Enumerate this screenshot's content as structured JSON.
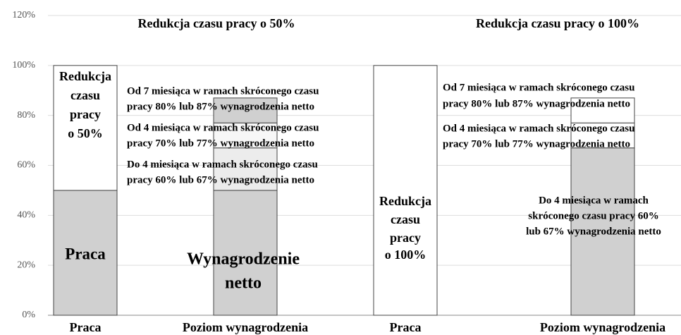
{
  "chart_data": {
    "type": "stacked-bar",
    "categories": [
      "Praca",
      "Poziom wynagrodzenia",
      "Praca",
      "Poziom wynagrodzenia"
    ],
    "bars": [
      {
        "segments": [
          {
            "value": 50,
            "color": "#d0d0d0"
          },
          {
            "value": 50,
            "color": "#ffffff"
          }
        ]
      },
      {
        "segments": [
          {
            "value": 50,
            "color": "#d0d0d0"
          },
          {
            "value": 17,
            "color": "#ececec"
          },
          {
            "value": 10,
            "color": "#f7f7f7"
          },
          {
            "value": 10,
            "color": "#d0d0d0"
          }
        ]
      },
      {
        "segments": [
          {
            "value": 100,
            "color": "#ffffff"
          }
        ]
      },
      {
        "segments": [
          {
            "value": 67,
            "color": "#d0d0d0"
          },
          {
            "value": 10,
            "color": "#ffffff"
          },
          {
            "value": 10,
            "color": "#ffffff"
          }
        ]
      }
    ],
    "ylim": [
      0,
      120
    ],
    "yticks": [
      {
        "value": 0,
        "label": "0%"
      },
      {
        "value": 20,
        "label": "20%"
      },
      {
        "value": 40,
        "label": "40%"
      },
      {
        "value": 60,
        "label": "60%"
      },
      {
        "value": 80,
        "label": "80%"
      },
      {
        "value": 100,
        "label": "100%"
      },
      {
        "value": 120,
        "label": "120%"
      }
    ],
    "grid": true,
    "annotations": [
      [
        "Redukcja czasu pracy o 50%"
      ],
      [
        "Redukcja czasu pracy o 100%"
      ],
      [
        "Redukcja",
        "czasu",
        "pracy",
        "o 50%"
      ],
      [
        "Praca"
      ],
      [
        "Od 7 miesiąca w ramach skróconego czasu",
        "pracy 80% lub 87% wynagrodzenia netto"
      ],
      [
        "Od 4 miesiąca w ramach skróconego czasu",
        "pracy 70% lub 77% wynagrodzenia netto"
      ],
      [
        "Do 4 miesiąca w ramach skróconego czasu",
        "pracy 60% lub 67% wynagrodzenia netto"
      ],
      [
        "Wynagrodzenie",
        "netto"
      ],
      [
        "Redukcja",
        "czasu",
        "pracy",
        "o 100%"
      ],
      [
        "Od 7 miesiąca w ramach skróconego czasu",
        "pracy 80% lub 87% wynagrodzenia netto"
      ],
      [
        "Od 4 miesiąca w ramach skróconego czasu",
        "pracy 70% lub 77% wynagrodzenia netto"
      ],
      [
        "Do 4 miesiąca w ramach",
        "skróconego czasu pracy 60%",
        "lub 67% wynagrodzenia netto"
      ]
    ]
  }
}
